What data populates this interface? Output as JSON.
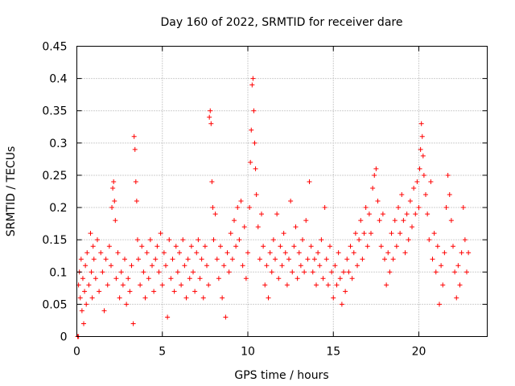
{
  "chart_data": {
    "type": "scatter",
    "title": "Day 160 of 2022, SRMTID for receiver dare",
    "xlabel": "GPS time / hours",
    "ylabel": "SRMTID / TECUs",
    "xlim": [
      0,
      24
    ],
    "ylim": [
      0,
      0.45
    ],
    "xticks": [
      0,
      5,
      10,
      15,
      20
    ],
    "yticks": [
      0,
      0.05,
      0.1,
      0.15,
      0.2,
      0.25,
      0.3,
      0.35,
      0.4,
      0.45
    ],
    "xtick_labels": [
      "0",
      "5",
      "10",
      "15",
      "20"
    ],
    "ytick_labels": [
      "0",
      "0.05",
      "0.1",
      "0.15",
      "0.2",
      "0.25",
      "0.3",
      "0.35",
      "0.4",
      "0.45"
    ],
    "grid": true,
    "marker": "+",
    "color": "#ff0000",
    "series": [
      {
        "name": "SRMTID",
        "points": [
          [
            0.05,
            0.0
          ],
          [
            0.1,
            0.0
          ],
          [
            0.1,
            0.08
          ],
          [
            0.15,
            0.1
          ],
          [
            0.2,
            0.06
          ],
          [
            0.25,
            0.12
          ],
          [
            0.3,
            0.04
          ],
          [
            0.35,
            0.09
          ],
          [
            0.4,
            0.02
          ],
          [
            0.45,
            0.07
          ],
          [
            0.5,
            0.11
          ],
          [
            0.55,
            0.05
          ],
          [
            0.6,
            0.13
          ],
          [
            0.7,
            0.08
          ],
          [
            0.8,
            0.16
          ],
          [
            0.85,
            0.1
          ],
          [
            0.9,
            0.06
          ],
          [
            0.95,
            0.14
          ],
          [
            1.0,
            0.12
          ],
          [
            1.1,
            0.09
          ],
          [
            1.2,
            0.15
          ],
          [
            1.3,
            0.07
          ],
          [
            1.4,
            0.13
          ],
          [
            1.5,
            0.1
          ],
          [
            1.6,
            0.04
          ],
          [
            1.7,
            0.12
          ],
          [
            1.8,
            0.08
          ],
          [
            1.9,
            0.14
          ],
          [
            2.0,
            0.11
          ],
          [
            2.05,
            0.2
          ],
          [
            2.1,
            0.23
          ],
          [
            2.15,
            0.24
          ],
          [
            2.2,
            0.21
          ],
          [
            2.25,
            0.18
          ],
          [
            2.3,
            0.09
          ],
          [
            2.4,
            0.13
          ],
          [
            2.5,
            0.06
          ],
          [
            2.6,
            0.1
          ],
          [
            2.7,
            0.08
          ],
          [
            2.8,
            0.12
          ],
          [
            2.9,
            0.05
          ],
          [
            3.0,
            0.09
          ],
          [
            3.1,
            0.07
          ],
          [
            3.2,
            0.11
          ],
          [
            3.3,
            0.02
          ],
          [
            3.35,
            0.31
          ],
          [
            3.4,
            0.29
          ],
          [
            3.45,
            0.24
          ],
          [
            3.5,
            0.21
          ],
          [
            3.55,
            0.15
          ],
          [
            3.6,
            0.12
          ],
          [
            3.7,
            0.08
          ],
          [
            3.8,
            0.14
          ],
          [
            3.9,
            0.1
          ],
          [
            4.0,
            0.06
          ],
          [
            4.1,
            0.13
          ],
          [
            4.2,
            0.09
          ],
          [
            4.3,
            0.15
          ],
          [
            4.4,
            0.11
          ],
          [
            4.5,
            0.07
          ],
          [
            4.6,
            0.12
          ],
          [
            4.7,
            0.14
          ],
          [
            4.8,
            0.1
          ],
          [
            4.9,
            0.16
          ],
          [
            5.0,
            0.08
          ],
          [
            5.1,
            0.13
          ],
          [
            5.2,
            0.11
          ],
          [
            5.3,
            0.03
          ],
          [
            5.4,
            0.15
          ],
          [
            5.5,
            0.09
          ],
          [
            5.6,
            0.12
          ],
          [
            5.7,
            0.07
          ],
          [
            5.8,
            0.14
          ],
          [
            5.9,
            0.1
          ],
          [
            6.0,
            0.13
          ],
          [
            6.1,
            0.08
          ],
          [
            6.2,
            0.15
          ],
          [
            6.3,
            0.11
          ],
          [
            6.4,
            0.06
          ],
          [
            6.5,
            0.12
          ],
          [
            6.6,
            0.09
          ],
          [
            6.7,
            0.14
          ],
          [
            6.8,
            0.1
          ],
          [
            6.9,
            0.07
          ],
          [
            7.0,
            0.13
          ],
          [
            7.1,
            0.15
          ],
          [
            7.2,
            0.09
          ],
          [
            7.3,
            0.12
          ],
          [
            7.4,
            0.06
          ],
          [
            7.5,
            0.14
          ],
          [
            7.6,
            0.11
          ],
          [
            7.7,
            0.08
          ],
          [
            7.75,
            0.34
          ],
          [
            7.8,
            0.35
          ],
          [
            7.85,
            0.33
          ],
          [
            7.9,
            0.24
          ],
          [
            7.95,
            0.2
          ],
          [
            8.0,
            0.15
          ],
          [
            8.1,
            0.19
          ],
          [
            8.2,
            0.12
          ],
          [
            8.3,
            0.09
          ],
          [
            8.4,
            0.14
          ],
          [
            8.5,
            0.06
          ],
          [
            8.6,
            0.11
          ],
          [
            8.7,
            0.03
          ],
          [
            8.8,
            0.13
          ],
          [
            8.9,
            0.1
          ],
          [
            9.0,
            0.16
          ],
          [
            9.1,
            0.12
          ],
          [
            9.2,
            0.18
          ],
          [
            9.3,
            0.14
          ],
          [
            9.4,
            0.2
          ],
          [
            9.5,
            0.15
          ],
          [
            9.6,
            0.21
          ],
          [
            9.7,
            0.11
          ],
          [
            9.8,
            0.17
          ],
          [
            9.9,
            0.09
          ],
          [
            10.0,
            0.13
          ],
          [
            10.1,
            0.2
          ],
          [
            10.15,
            0.27
          ],
          [
            10.2,
            0.32
          ],
          [
            10.25,
            0.39
          ],
          [
            10.3,
            0.4
          ],
          [
            10.35,
            0.35
          ],
          [
            10.4,
            0.3
          ],
          [
            10.45,
            0.26
          ],
          [
            10.5,
            0.22
          ],
          [
            10.6,
            0.17
          ],
          [
            10.7,
            0.12
          ],
          [
            10.8,
            0.19
          ],
          [
            10.9,
            0.14
          ],
          [
            11.0,
            0.08
          ],
          [
            11.1,
            0.11
          ],
          [
            11.2,
            0.06
          ],
          [
            11.3,
            0.13
          ],
          [
            11.4,
            0.1
          ],
          [
            11.5,
            0.15
          ],
          [
            11.6,
            0.12
          ],
          [
            11.7,
            0.19
          ],
          [
            11.8,
            0.09
          ],
          [
            11.9,
            0.14
          ],
          [
            12.0,
            0.11
          ],
          [
            12.1,
            0.16
          ],
          [
            12.2,
            0.13
          ],
          [
            12.3,
            0.08
          ],
          [
            12.4,
            0.12
          ],
          [
            12.5,
            0.21
          ],
          [
            12.6,
            0.1
          ],
          [
            12.7,
            0.14
          ],
          [
            12.8,
            0.17
          ],
          [
            12.9,
            0.09
          ],
          [
            13.0,
            0.13
          ],
          [
            13.1,
            0.11
          ],
          [
            13.2,
            0.15
          ],
          [
            13.3,
            0.1
          ],
          [
            13.4,
            0.18
          ],
          [
            13.5,
            0.12
          ],
          [
            13.6,
            0.24
          ],
          [
            13.7,
            0.14
          ],
          [
            13.8,
            0.1
          ],
          [
            13.9,
            0.12
          ],
          [
            14.0,
            0.08
          ],
          [
            14.1,
            0.13
          ],
          [
            14.2,
            0.11
          ],
          [
            14.3,
            0.15
          ],
          [
            14.4,
            0.09
          ],
          [
            14.5,
            0.2
          ],
          [
            14.6,
            0.12
          ],
          [
            14.7,
            0.08
          ],
          [
            14.8,
            0.14
          ],
          [
            14.9,
            0.1
          ],
          [
            15.0,
            0.06
          ],
          [
            15.1,
            0.11
          ],
          [
            15.2,
            0.08
          ],
          [
            15.3,
            0.13
          ],
          [
            15.4,
            0.09
          ],
          [
            15.5,
            0.05
          ],
          [
            15.6,
            0.1
          ],
          [
            15.7,
            0.07
          ],
          [
            15.8,
            0.12
          ],
          [
            15.9,
            0.1
          ],
          [
            16.0,
            0.14
          ],
          [
            16.1,
            0.09
          ],
          [
            16.2,
            0.13
          ],
          [
            16.3,
            0.16
          ],
          [
            16.4,
            0.11
          ],
          [
            16.5,
            0.15
          ],
          [
            16.6,
            0.18
          ],
          [
            16.7,
            0.12
          ],
          [
            16.8,
            0.16
          ],
          [
            16.9,
            0.2
          ],
          [
            17.0,
            0.14
          ],
          [
            17.1,
            0.19
          ],
          [
            17.2,
            0.16
          ],
          [
            17.3,
            0.23
          ],
          [
            17.4,
            0.25
          ],
          [
            17.5,
            0.26
          ],
          [
            17.6,
            0.21
          ],
          [
            17.7,
            0.18
          ],
          [
            17.8,
            0.14
          ],
          [
            17.9,
            0.19
          ],
          [
            18.0,
            0.12
          ],
          [
            18.1,
            0.08
          ],
          [
            18.2,
            0.13
          ],
          [
            18.3,
            0.1
          ],
          [
            18.4,
            0.16
          ],
          [
            18.5,
            0.12
          ],
          [
            18.6,
            0.18
          ],
          [
            18.7,
            0.14
          ],
          [
            18.8,
            0.2
          ],
          [
            18.9,
            0.16
          ],
          [
            19.0,
            0.22
          ],
          [
            19.1,
            0.18
          ],
          [
            19.2,
            0.13
          ],
          [
            19.3,
            0.19
          ],
          [
            19.4,
            0.15
          ],
          [
            19.5,
            0.21
          ],
          [
            19.6,
            0.17
          ],
          [
            19.7,
            0.23
          ],
          [
            19.8,
            0.19
          ],
          [
            19.9,
            0.24
          ],
          [
            20.0,
            0.2
          ],
          [
            20.05,
            0.26
          ],
          [
            20.1,
            0.29
          ],
          [
            20.15,
            0.33
          ],
          [
            20.2,
            0.31
          ],
          [
            20.25,
            0.28
          ],
          [
            20.3,
            0.25
          ],
          [
            20.4,
            0.22
          ],
          [
            20.5,
            0.19
          ],
          [
            20.6,
            0.15
          ],
          [
            20.7,
            0.24
          ],
          [
            20.8,
            0.12
          ],
          [
            20.9,
            0.16
          ],
          [
            21.0,
            0.1
          ],
          [
            21.1,
            0.14
          ],
          [
            21.2,
            0.05
          ],
          [
            21.3,
            0.11
          ],
          [
            21.4,
            0.08
          ],
          [
            21.5,
            0.13
          ],
          [
            21.6,
            0.2
          ],
          [
            21.7,
            0.25
          ],
          [
            21.8,
            0.22
          ],
          [
            21.9,
            0.18
          ],
          [
            22.0,
            0.14
          ],
          [
            22.1,
            0.1
          ],
          [
            22.2,
            0.06
          ],
          [
            22.3,
            0.11
          ],
          [
            22.4,
            0.08
          ],
          [
            22.5,
            0.13
          ],
          [
            22.6,
            0.2
          ],
          [
            22.7,
            0.15
          ],
          [
            22.8,
            0.1
          ],
          [
            22.9,
            0.13
          ]
        ]
      }
    ]
  }
}
